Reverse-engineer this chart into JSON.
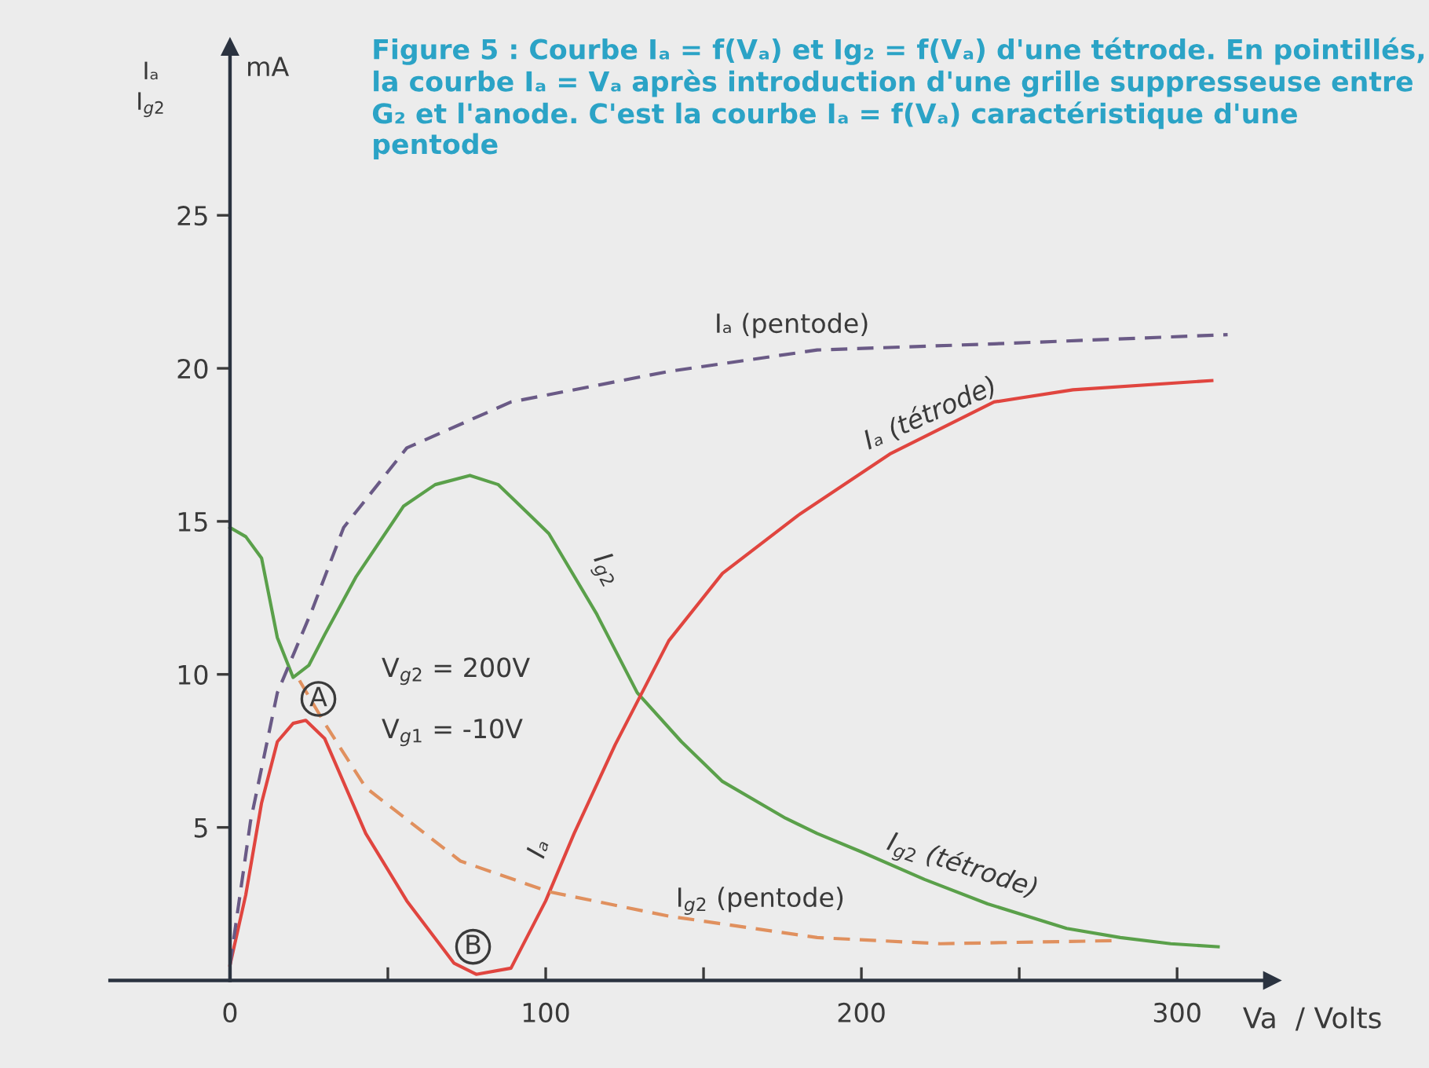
{
  "chart_data": {
    "type": "line",
    "title": "Figure 5 : Courbe Iₐ = f(Vₐ) et Ig₂ = f(Vₐ) d'une tétrode. En pointillés, la courbe Iₐ = Vₐ après introduction d'une grille suppresseuse entre G₂ et l'anode. C'est la courbe Iₐ = f(Vₐ) caractéristique d'une pentode",
    "xlabel": "Va  / Volts",
    "ylabel": "Iₐ\nI$_{g2}$",
    "xlim": [
      -38,
      330
    ],
    "ylim": [
      0,
      30.5
    ],
    "xticks": [
      0,
      {
        "value": 50,
        "label": null
      },
      100,
      {
        "value": 150,
        "label": null
      },
      200,
      {
        "value": 250,
        "label": null
      },
      300
    ],
    "yticks": [
      5,
      10,
      15,
      20,
      25
    ],
    "grid": false,
    "legend": false,
    "marker": "none",
    "series": [
      {
        "name": "I$_{g2}$ (tétrode)",
        "color": "#5aa04a",
        "line_style": "solid",
        "x": [
          0,
          5,
          10,
          15,
          20,
          25,
          30,
          40,
          55,
          65,
          76,
          85,
          95,
          101,
          116,
          129,
          143,
          156,
          176,
          186,
          200,
          220,
          240,
          265,
          282,
          298,
          313
        ],
        "values": [
          14.8,
          14.5,
          13.8,
          11.2,
          9.9,
          10.3,
          11.3,
          13.2,
          15.5,
          16.2,
          16.5,
          16.2,
          15.2,
          14.6,
          12.0,
          9.4,
          7.8,
          6.5,
          5.3,
          4.8,
          4.2,
          3.3,
          2.5,
          1.7,
          1.4,
          1.2,
          1.1
        ]
      },
      {
        "name": "Iₐ (tétrode)",
        "color": "#e0453f",
        "line_style": "solid",
        "x": [
          0,
          5,
          10,
          15,
          20,
          24,
          30,
          43,
          56,
          71,
          78,
          89,
          100,
          109,
          122,
          139,
          156,
          180,
          209,
          242,
          267,
          311
        ],
        "values": [
          0.5,
          2.8,
          5.8,
          7.8,
          8.4,
          8.5,
          7.9,
          4.8,
          2.6,
          0.56,
          0.2,
          0.4,
          2.6,
          4.8,
          7.7,
          11.1,
          13.3,
          15.2,
          17.2,
          18.9,
          19.3,
          19.6
        ]
      },
      {
        "name": "Iₐ (pentode)",
        "color": "#6a5a86",
        "line_style": "dashed",
        "x": [
          0,
          6.5,
          15,
          26,
          36,
          56,
          89,
          139,
          186,
          242,
          316
        ],
        "values": [
          0.5,
          5.2,
          9.4,
          12.1,
          14.8,
          17.4,
          18.9,
          19.9,
          20.6,
          20.8,
          21.1
        ]
      },
      {
        "name": "I$_{g2}$ (pentode)",
        "color": "#e0905e",
        "line_style": "dashed",
        "x": [
          22,
          30,
          43,
          73,
          101,
          139,
          186,
          225,
          280
        ],
        "values": [
          9.8,
          8.4,
          6.3,
          3.9,
          2.9,
          2.1,
          1.4,
          1.2,
          1.3
        ]
      }
    ],
    "annotations": [
      {
        "text": "A",
        "x": 22,
        "y": 9.8
      },
      {
        "text": "B",
        "x": 78,
        "y": 0.2
      },
      "I$_{g2}$",
      "Iₐ",
      "V$_{g2}$ = 200V",
      "V$_{g1}$ = -10V",
      "mA"
    ]
  }
}
